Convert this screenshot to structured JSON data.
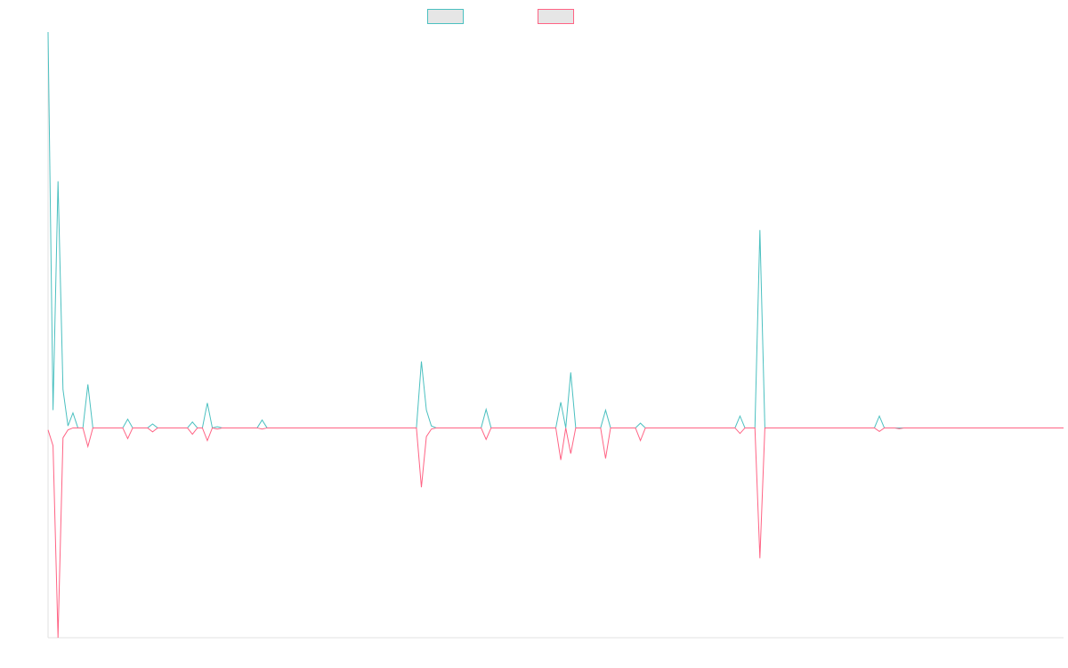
{
  "chart_data": {
    "type": "line",
    "x": [
      0,
      1,
      2,
      3,
      4,
      5,
      6,
      7,
      8,
      9,
      15,
      16,
      17,
      20,
      21,
      22,
      28,
      29,
      30,
      31,
      32,
      33,
      34,
      35,
      42,
      43,
      44,
      74,
      75,
      76,
      77,
      78,
      87,
      88,
      89,
      102,
      103,
      104,
      105,
      106,
      111,
      112,
      113,
      118,
      119,
      120,
      138,
      139,
      140,
      142,
      143,
      144,
      166,
      167,
      168,
      170,
      171,
      172,
      204
    ],
    "xlim": [
      0,
      204
    ],
    "ylim": [
      -53,
      100
    ],
    "legend": "top",
    "series": [
      {
        "color": "#4bc0c0",
        "values": [
          100,
          4.5,
          62.3,
          9.7,
          0.5,
          3.8,
          0,
          0,
          11,
          0,
          0,
          2.2,
          0,
          0,
          1,
          0,
          0,
          1.5,
          0,
          0,
          6.3,
          0,
          0.3,
          0,
          0,
          2,
          0,
          0,
          16.8,
          4.5,
          0.5,
          0,
          0,
          4.7,
          0,
          0,
          6.5,
          0,
          14,
          0,
          0,
          4.5,
          0,
          0,
          1.2,
          0,
          0,
          3,
          0,
          0,
          50,
          0,
          0,
          3,
          0,
          0,
          0,
          0,
          0
        ]
      },
      {
        "color": "#ff6384",
        "values": [
          -0.5,
          -4.5,
          -53,
          -2.5,
          -0.5,
          0,
          0,
          0,
          -4.7,
          0,
          0,
          -2.7,
          0,
          0,
          -1,
          0,
          0,
          -1.6,
          0,
          0,
          -3.2,
          0,
          -0.3,
          0,
          0,
          -0.3,
          0,
          0,
          -15,
          -2.2,
          -0.3,
          0,
          0,
          -2.9,
          0,
          0,
          -8.1,
          0,
          -6.5,
          0,
          0,
          -7.7,
          0,
          0,
          -3.2,
          0,
          0,
          -1.4,
          0,
          0,
          -32.9,
          0,
          0,
          -0.9,
          0,
          0,
          -0.2,
          0,
          0
        ]
      }
    ]
  }
}
